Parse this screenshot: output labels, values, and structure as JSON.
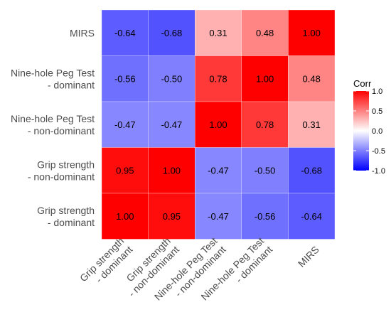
{
  "chart_data": {
    "type": "heatmap",
    "row_labels": [
      [
        "MIRS"
      ],
      [
        "Nine-hole Peg Test",
        "- dominant"
      ],
      [
        "Nine-hole Peg Test",
        "- non-dominant"
      ],
      [
        "Grip strength",
        "- non-dominant"
      ],
      [
        "Grip strength",
        "- dominant"
      ]
    ],
    "col_labels": [
      [
        "Grip strength",
        "- dominant"
      ],
      [
        "Grip strength",
        "- non-dominant"
      ],
      [
        "Nine-hole Peg Test",
        "- non-dominant"
      ],
      [
        "Nine-hole Peg Test",
        "- dominant"
      ],
      [
        "MIRS"
      ]
    ],
    "values": [
      [
        -0.64,
        -0.68,
        0.31,
        0.48,
        1.0
      ],
      [
        -0.56,
        -0.5,
        0.78,
        1.0,
        0.48
      ],
      [
        -0.47,
        -0.47,
        1.0,
        0.78,
        0.31
      ],
      [
        0.95,
        1.0,
        -0.47,
        -0.5,
        -0.68
      ],
      [
        1.0,
        0.95,
        -0.47,
        -0.56,
        -0.64
      ]
    ],
    "value_format": "2dp",
    "legend": {
      "title": "Corr",
      "ticks": [
        "1.0",
        "0.5",
        "0.0",
        "-0.5",
        "-1.0"
      ],
      "tick_values": [
        1.0,
        0.5,
        0.0,
        -0.5,
        -1.0
      ],
      "range": [
        -1,
        1
      ],
      "placement": "right"
    },
    "colors": {
      "low": "#0000FF",
      "mid": "#FFFFFF",
      "high": "#FF0000"
    },
    "grid": false
  }
}
